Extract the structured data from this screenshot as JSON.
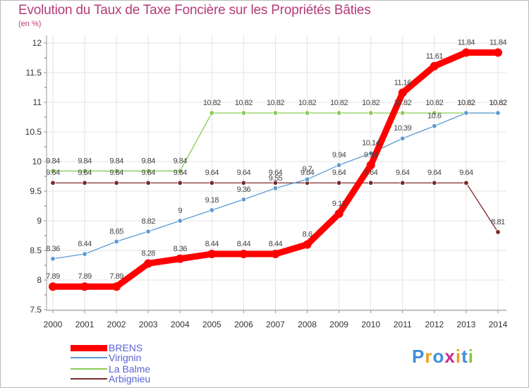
{
  "chart_data": {
    "type": "line",
    "title": "Evolution du Taux de Taxe Foncière sur les Propriétés Bâties",
    "subtitle": "(en %)",
    "xlabel": "",
    "ylabel": "",
    "ylim": [
      7.5,
      12
    ],
    "yticks": [
      "7.5",
      "8",
      "8.5",
      "9",
      "9.5",
      "10",
      "10.5",
      "11",
      "11.5",
      "12"
    ],
    "x": [
      "2000",
      "2001",
      "2002",
      "2003",
      "2004",
      "2005",
      "2006",
      "2007",
      "2008",
      "2009",
      "2010",
      "2011",
      "2012",
      "2013",
      "2014"
    ],
    "series": [
      {
        "name": "BRENS",
        "color": "#ff0000",
        "values": [
          7.89,
          7.89,
          7.89,
          8.28,
          8.36,
          8.44,
          8.44,
          8.44,
          8.6,
          9.12,
          9.94,
          11.16,
          11.61,
          11.84,
          11.84
        ],
        "labels": [
          "7.89",
          "7.89",
          "7.89",
          "8.28",
          "8.36",
          "8.44",
          "8.44",
          "8.44",
          "8.6",
          "9.12",
          "9.94",
          "11.16",
          "11.61",
          "11.84",
          "11.84"
        ]
      },
      {
        "name": "Virignin",
        "color": "#5b9bd5",
        "values": [
          8.36,
          8.44,
          8.65,
          8.82,
          9.0,
          9.18,
          9.36,
          9.55,
          9.7,
          9.94,
          10.14,
          10.39,
          10.6,
          10.82,
          10.82
        ],
        "labels": [
          "8.36",
          "8.44",
          "8.65",
          "8.82",
          "9",
          "9.18",
          "9.36",
          "9.55",
          "9.7",
          "9.94",
          "10.14",
          "10.39",
          "10.6",
          "10.82",
          "10.82"
        ]
      },
      {
        "name": "La Balme",
        "color": "#88cc55",
        "values": [
          9.84,
          9.84,
          9.84,
          9.84,
          9.84,
          10.82,
          10.82,
          10.82,
          10.82,
          10.82,
          10.82,
          10.82,
          10.82,
          10.82,
          10.82
        ],
        "labels": [
          "9.84",
          "9.84",
          "9.84",
          "9.84",
          "9.84",
          "10.82",
          "10.82",
          "10.82",
          "10.82",
          "10.82",
          "10.82",
          "10.82",
          "10.82",
          "10.82",
          "10.82"
        ]
      },
      {
        "name": "Arbignieu",
        "color": "#7a2b2b",
        "values": [
          9.64,
          9.64,
          9.64,
          9.64,
          9.64,
          9.64,
          9.64,
          9.64,
          9.64,
          9.64,
          9.64,
          9.64,
          9.64,
          9.64,
          8.81
        ],
        "labels": [
          "9.64",
          "9.64",
          "9.64",
          "9.64",
          "9.64",
          "9.64",
          "9.64",
          "9.64",
          "9.64",
          "9.64",
          "9.64",
          "9.64",
          "9.64",
          "9.64",
          "8.81"
        ]
      }
    ],
    "legend_position": "bottom-left"
  },
  "logo": {
    "text": "Proxiti",
    "letters": [
      "P",
      "r",
      "o",
      "x",
      "i",
      "t",
      "i"
    ],
    "colors": [
      "#3f8fd8",
      "#e8a21c",
      "#3f8fd8",
      "#cc2a8a",
      "#e8a21c",
      "#3f8fd8",
      "#8ac43f"
    ]
  }
}
